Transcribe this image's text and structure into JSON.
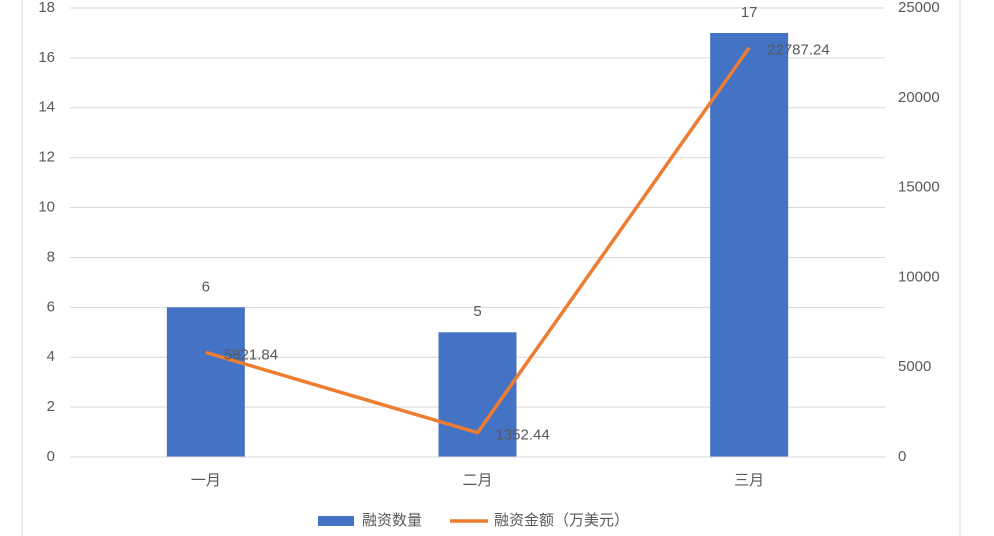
{
  "chart_data": {
    "type": "bar",
    "categories": [
      "一月",
      "二月",
      "三月"
    ],
    "series": [
      {
        "name": "融资数量",
        "type": "bar",
        "color": "#4472c4",
        "values": [
          6,
          5,
          17
        ]
      },
      {
        "name": "融资金额（万美元）",
        "type": "line",
        "axis": "y2",
        "color": "#ed7d31",
        "values": [
          5821.84,
          1352.44,
          22787.24
        ]
      }
    ],
    "ylim": [
      0,
      18
    ],
    "yticks": [
      0,
      2,
      4,
      6,
      8,
      10,
      12,
      14,
      16,
      18
    ],
    "y2lim": [
      0,
      25000
    ],
    "y2ticks": [
      0,
      5000,
      10000,
      15000,
      20000,
      25000
    ],
    "grid": true,
    "legend": "bottom"
  }
}
